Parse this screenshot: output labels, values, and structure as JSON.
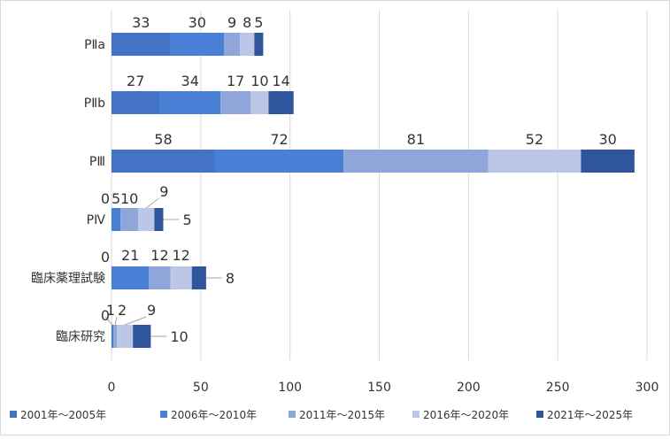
{
  "chart_data": {
    "type": "bar",
    "orientation": "horizontal",
    "stacked": true,
    "categories": [
      "PⅡa",
      "PⅡb",
      "PⅢ",
      "PⅣ",
      "臨床薬理試験",
      "臨床研究"
    ],
    "series": [
      {
        "name": "2001年～2005年",
        "color": "#4472c4",
        "values": [
          33,
          27,
          58,
          0,
          0,
          0
        ]
      },
      {
        "name": "2006年～2010年",
        "color": "#4a7fd6",
        "values": [
          30,
          34,
          72,
          5,
          21,
          1
        ]
      },
      {
        "name": "2011年～2015年",
        "color": "#8ea6d9",
        "values": [
          9,
          17,
          81,
          10,
          12,
          2
        ]
      },
      {
        "name": "2016年～2020年",
        "color": "#bcc6e6",
        "values": [
          8,
          10,
          52,
          9,
          12,
          9
        ]
      },
      {
        "name": "2021年～2025年",
        "color": "#2f559c",
        "values": [
          5,
          14,
          30,
          5,
          8,
          10
        ]
      }
    ],
    "xlim": [
      0,
      300
    ],
    "xticks": [
      "0",
      "50",
      "100",
      "150",
      "200",
      "250",
      "300"
    ],
    "grid": true,
    "legend_position": "bottom"
  }
}
